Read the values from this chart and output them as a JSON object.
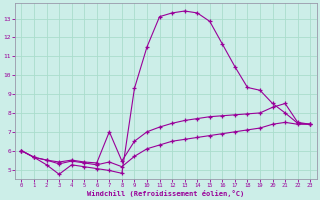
{
  "xlabel": "Windchill (Refroidissement éolien,°C)",
  "bg_color": "#cceee8",
  "line_color": "#990099",
  "grid_color": "#aaddcc",
  "spine_color": "#9999aa",
  "xlim": [
    -0.5,
    23.5
  ],
  "ylim": [
    4.5,
    13.8
  ],
  "xticks": [
    0,
    1,
    2,
    3,
    4,
    5,
    6,
    7,
    8,
    9,
    10,
    11,
    12,
    13,
    14,
    15,
    16,
    17,
    18,
    19,
    20,
    21,
    22,
    23
  ],
  "yticks": [
    5,
    6,
    7,
    8,
    9,
    10,
    11,
    12,
    13
  ],
  "series1_x": [
    0,
    1,
    2,
    3,
    4,
    5,
    6,
    7,
    8,
    9,
    10,
    11,
    12,
    13,
    14,
    15,
    16,
    17,
    18,
    19,
    20,
    21,
    22,
    23
  ],
  "series1_y": [
    6.0,
    5.65,
    5.25,
    4.75,
    5.25,
    5.15,
    5.05,
    4.95,
    4.8,
    9.3,
    11.5,
    13.1,
    13.3,
    13.4,
    13.3,
    12.85,
    11.65,
    10.45,
    9.35,
    9.2,
    8.5,
    8.0,
    7.45,
    7.4
  ],
  "series2_x": [
    0,
    1,
    2,
    3,
    4,
    5,
    6,
    7,
    8,
    9,
    10,
    11,
    12,
    13,
    14,
    15,
    16,
    17,
    18,
    19,
    20,
    21,
    22,
    23
  ],
  "series2_y": [
    6.0,
    5.65,
    5.5,
    5.4,
    5.5,
    5.4,
    5.35,
    7.0,
    5.45,
    6.5,
    7.0,
    7.25,
    7.45,
    7.6,
    7.7,
    7.8,
    7.85,
    7.9,
    7.95,
    8.0,
    8.3,
    8.5,
    7.5,
    7.4
  ],
  "series3_x": [
    0,
    1,
    2,
    3,
    4,
    5,
    6,
    7,
    8,
    9,
    10,
    11,
    12,
    13,
    14,
    15,
    16,
    17,
    18,
    19,
    20,
    21,
    22,
    23
  ],
  "series3_y": [
    6.0,
    5.65,
    5.5,
    5.3,
    5.45,
    5.35,
    5.25,
    5.4,
    5.15,
    5.7,
    6.1,
    6.3,
    6.5,
    6.6,
    6.7,
    6.8,
    6.9,
    7.0,
    7.1,
    7.2,
    7.4,
    7.5,
    7.4,
    7.4
  ]
}
